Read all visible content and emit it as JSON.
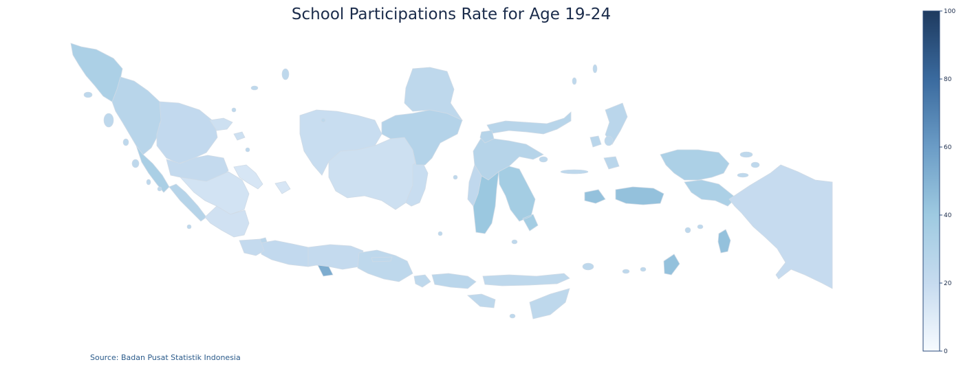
{
  "title": "School Participations Rate for Age 19-24",
  "source": "Source: Badan Pusat Statistik Indonesia",
  "colorbar": {
    "min": 0,
    "max": 100,
    "ticks": [
      "0",
      "20",
      "40",
      "60",
      "80",
      "100"
    ],
    "colors": [
      "#f7fbff",
      "#c6dbef",
      "#9ecae1",
      "#6b9cc6",
      "#3a6a9e",
      "#1e3a5f"
    ]
  },
  "regions": [
    {
      "name": "Aceh",
      "value": 33
    },
    {
      "name": "North Sumatra",
      "value": 27
    },
    {
      "name": "West Sumatra",
      "value": 34
    },
    {
      "name": "Riau",
      "value": 22
    },
    {
      "name": "Jambi",
      "value": 21
    },
    {
      "name": "Bengkulu",
      "value": 28
    },
    {
      "name": "South Sumatra",
      "value": 15
    },
    {
      "name": "Lampung",
      "value": 16
    },
    {
      "name": "Bangka Belitung",
      "value": 13
    },
    {
      "name": "Riau Islands",
      "value": 17
    },
    {
      "name": "DKI Jakarta",
      "value": 26
    },
    {
      "name": "West Java",
      "value": 22
    },
    {
      "name": "Central Java",
      "value": 21
    },
    {
      "name": "DI Yogyakarta",
      "value": 53
    },
    {
      "name": "East Java",
      "value": 24
    },
    {
      "name": "Banten",
      "value": 21
    },
    {
      "name": "Bali",
      "value": 24
    },
    {
      "name": "West Nusa Tenggara",
      "value": 26
    },
    {
      "name": "East Nusa Tenggara",
      "value": 24
    },
    {
      "name": "West Kalimantan",
      "value": 19
    },
    {
      "name": "Central Kalimantan",
      "value": 17
    },
    {
      "name": "South Kalimantan",
      "value": 19
    },
    {
      "name": "East Kalimantan",
      "value": 29
    },
    {
      "name": "North Kalimantan",
      "value": 24
    },
    {
      "name": "North Sulawesi",
      "value": 27
    },
    {
      "name": "Central Sulawesi",
      "value": 28
    },
    {
      "name": "South Sulawesi",
      "value": 41
    },
    {
      "name": "Southeast Sulawesi",
      "value": 37
    },
    {
      "name": "Gorontalo",
      "value": 28
    },
    {
      "name": "West Sulawesi",
      "value": 23
    },
    {
      "name": "Maluku",
      "value": 44
    },
    {
      "name": "North Maluku",
      "value": 26
    },
    {
      "name": "West Papua",
      "value": 33
    },
    {
      "name": "Papua",
      "value": 20
    }
  ]
}
